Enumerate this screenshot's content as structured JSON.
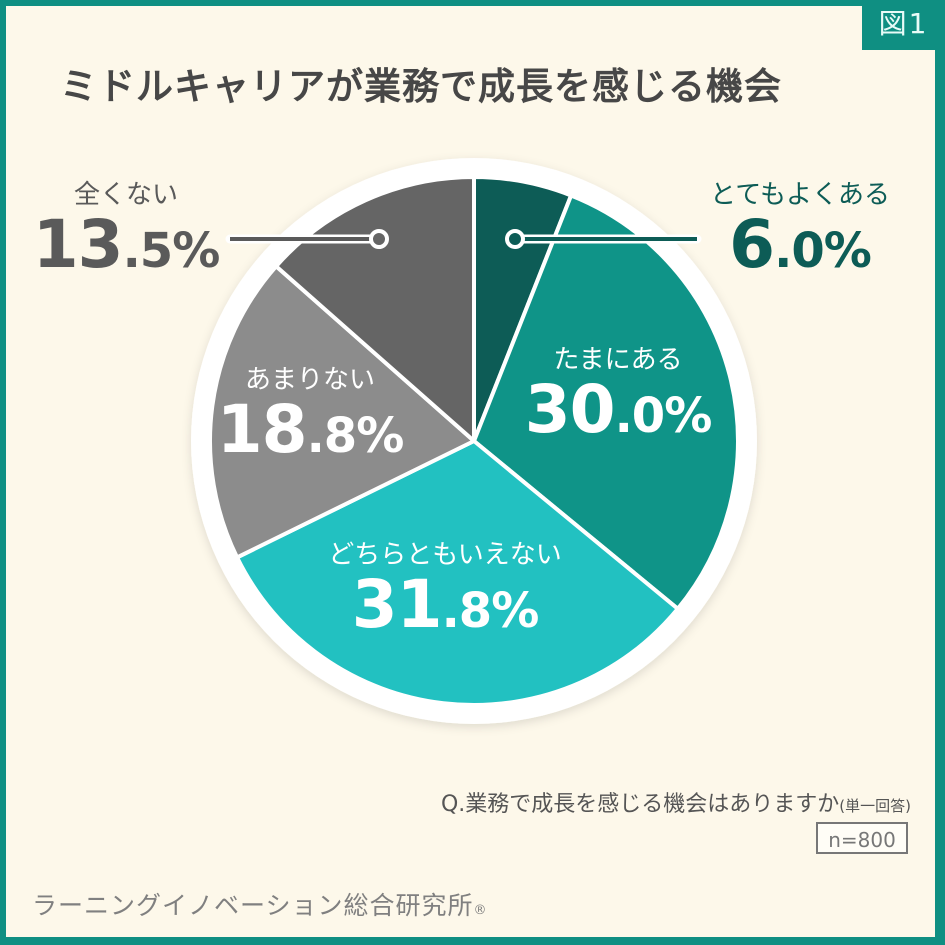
{
  "badge": "図1",
  "title": "ミドルキャリアが業務で成長を感じる機会",
  "question": {
    "main": "Q.業務で成長を感じる機会はありますか",
    "sub": "(単一回答)"
  },
  "sample": "n=800",
  "footer": {
    "org": "ラーニングイノベーション総合研究所",
    "reg": "®"
  },
  "colors": {
    "frame": "#0f8f82",
    "background": "#fdf8ea",
    "very_often": "#0d5c56",
    "sometimes": "#0f9488",
    "neither": "#22c1c1",
    "rarely": "#8c8c8c",
    "never": "#656565"
  },
  "slices": [
    {
      "label": "とてもよくある",
      "int": "6",
      "dec": ".0%",
      "value": 6.0
    },
    {
      "label": "たまにある",
      "int": "30",
      "dec": ".0%",
      "value": 30.0
    },
    {
      "label": "どちらともいえない",
      "int": "31",
      "dec": ".8%",
      "value": 31.8
    },
    {
      "label": "あまりない",
      "int": "18",
      "dec": ".8%",
      "value": 18.8
    },
    {
      "label": "全くない",
      "int": "13",
      "dec": ".5%",
      "value": 13.5
    }
  ],
  "chart_data": {
    "type": "pie",
    "title": "ミドルキャリアが業務で成長を感じる機会",
    "subtitle": "Q.業務で成長を感じる機会はありますか(単一回答)",
    "categories": [
      "とてもよくある",
      "たまにある",
      "どちらともいえない",
      "あまりない",
      "全くない"
    ],
    "values": [
      6.0,
      30.0,
      31.8,
      18.8,
      13.5
    ],
    "unit": "%",
    "start_angle": "12 o'clock, clockwise",
    "n": 800,
    "source": "ラーニングイノベーション総合研究所"
  }
}
